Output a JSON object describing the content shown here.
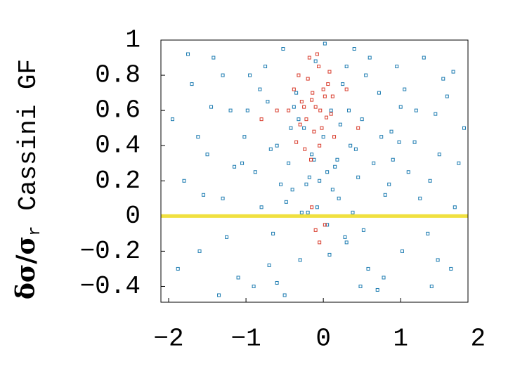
{
  "chart_data": {
    "type": "scatter",
    "ylabel": "δσ/σ",
    "ylabel_sub": "r",
    "ylabel_rest": "Cassini GF",
    "xlim": [
      -2.1,
      1.87
    ],
    "ylim": [
      -0.49,
      1
    ],
    "xticks": [
      {
        "value": -2,
        "label": "−2"
      },
      {
        "value": -1,
        "label": "−1"
      },
      0,
      1,
      2
    ],
    "yticks": [
      {
        "value": -0.4,
        "label": "−0.4"
      },
      {
        "value": -0.2,
        "label": "−0.2"
      },
      0,
      0.2,
      0.4,
      0.6,
      0.8,
      1
    ],
    "hline": 0,
    "hline_color": "#f0e040",
    "series": [
      {
        "color": "#1a7ab0",
        "x": [
          -1.95,
          -1.8,
          -1.7,
          -1.6,
          -1.5,
          -1.42,
          -1.3,
          -1.2,
          -1.1,
          -1.02,
          -0.95,
          -0.88,
          -0.8,
          -0.72,
          -0.65,
          -0.6,
          -0.52,
          -0.45,
          -0.4,
          -0.35,
          -0.3,
          -0.25,
          -0.2,
          -0.15,
          -0.1,
          -0.05,
          0,
          0.05,
          0.1,
          0.15,
          0.2,
          0.25,
          0.3,
          0.35,
          0.4,
          0.45,
          0.5,
          0.58,
          0.65,
          0.72,
          0.8,
          0.88,
          0.95,
          1.02,
          1.1,
          1.2,
          1.3,
          1.4,
          1.5,
          1.6,
          1.7,
          1.82,
          -1.88,
          -1.62,
          -1.35,
          -1.15,
          -0.98,
          -0.75,
          -0.55,
          -0.42,
          -0.28,
          -0.12,
          0.02,
          0.12,
          0.28,
          0.42,
          0.55,
          0.7,
          0.85,
          1.0,
          1.18,
          1.35,
          1.55,
          1.75,
          -1.75,
          -1.45,
          -1.25,
          -0.9,
          -0.68,
          -0.48,
          -0.32,
          -0.18,
          0.08,
          0.22,
          0.38,
          0.6,
          0.78,
          0.98,
          1.25,
          1.48,
          1.68,
          -1.55,
          -1.05,
          -0.82,
          -0.6,
          -0.38,
          -0.22,
          0.18,
          0.33,
          0.52,
          0.75,
          1.05,
          1.38,
          1.65,
          -1.3,
          -0.7,
          -0.5,
          -0.08,
          0.05,
          0.3,
          0.48,
          0.9,
          1.45
        ],
        "y": [
          0.55,
          0.2,
          0.75,
          -0.2,
          0.35,
          0.9,
          0.1,
          0.6,
          -0.35,
          0.45,
          0.8,
          0.25,
          0.05,
          0.65,
          -0.1,
          0.4,
          0.95,
          0.3,
          0.15,
          0.7,
          -0.25,
          0.5,
          0.02,
          0.35,
          0.88,
          0.2,
          0.45,
          -0.05,
          0.6,
          0.28,
          0.1,
          0.75,
          -0.15,
          0.4,
          0.95,
          0.22,
          0.55,
          -0.3,
          0.3,
          0.7,
          0.12,
          0.48,
          0.85,
          -0.2,
          0.25,
          0.6,
          0.9,
          -0.4,
          0.35,
          0.68,
          0.05,
          0.5,
          -0.3,
          0.45,
          -0.45,
          0.28,
          0.6,
          0.85,
          0.18,
          0.5,
          0.02,
          0.32,
          0.98,
          0.15,
          -0.12,
          0.38,
          0.8,
          -0.42,
          0.18,
          0.62,
          0.42,
          -0.1,
          0.78,
          0.3,
          0.92,
          0.62,
          -0.12,
          -0.4,
          0.38,
          0.08,
          0.55,
          0.22,
          -0.22,
          0.52,
          0.02,
          0.9,
          -0.35,
          0.42,
          0.1,
          -0.25,
          0.82,
          0.12,
          0.3,
          0.72,
          -0.38,
          0.62,
          0.18,
          0.32,
          0.6,
          -0.08,
          0.45,
          0.72,
          0.2,
          -0.3,
          0.8,
          -0.28,
          -0.45,
          0.05,
          0.25,
          0.85,
          -0.4,
          0.32,
          0.58
        ]
      },
      {
        "color": "#d83a2a",
        "x": [
          -0.45,
          -0.38,
          -0.32,
          -0.28,
          -0.22,
          -0.18,
          -0.14,
          -0.1,
          -0.06,
          -0.02,
          0.02,
          0.06,
          0.1,
          0.14,
          -0.3,
          -0.25,
          -0.2,
          -0.15,
          -0.12,
          -0.08,
          -0.04,
          0,
          0.04,
          0.08,
          -0.35,
          -0.24,
          -0.16,
          -0.05,
          0.12,
          -0.6,
          0.3,
          -0.1,
          -0.05,
          0.02,
          -0.15,
          -0.8,
          0.45
        ],
        "y": [
          0.6,
          0.72,
          0.8,
          0.65,
          0.55,
          0.9,
          0.7,
          0.62,
          0.85,
          0.5,
          0.68,
          0.75,
          0.58,
          0.45,
          0.52,
          0.62,
          0.78,
          0.66,
          0.48,
          0.92,
          0.6,
          0.72,
          0.56,
          0.82,
          0.42,
          0.38,
          0.32,
          0.4,
          0.68,
          0.6,
          0.72,
          -0.08,
          -0.15,
          -0.05,
          0.05,
          0.55,
          0.5
        ]
      }
    ]
  }
}
